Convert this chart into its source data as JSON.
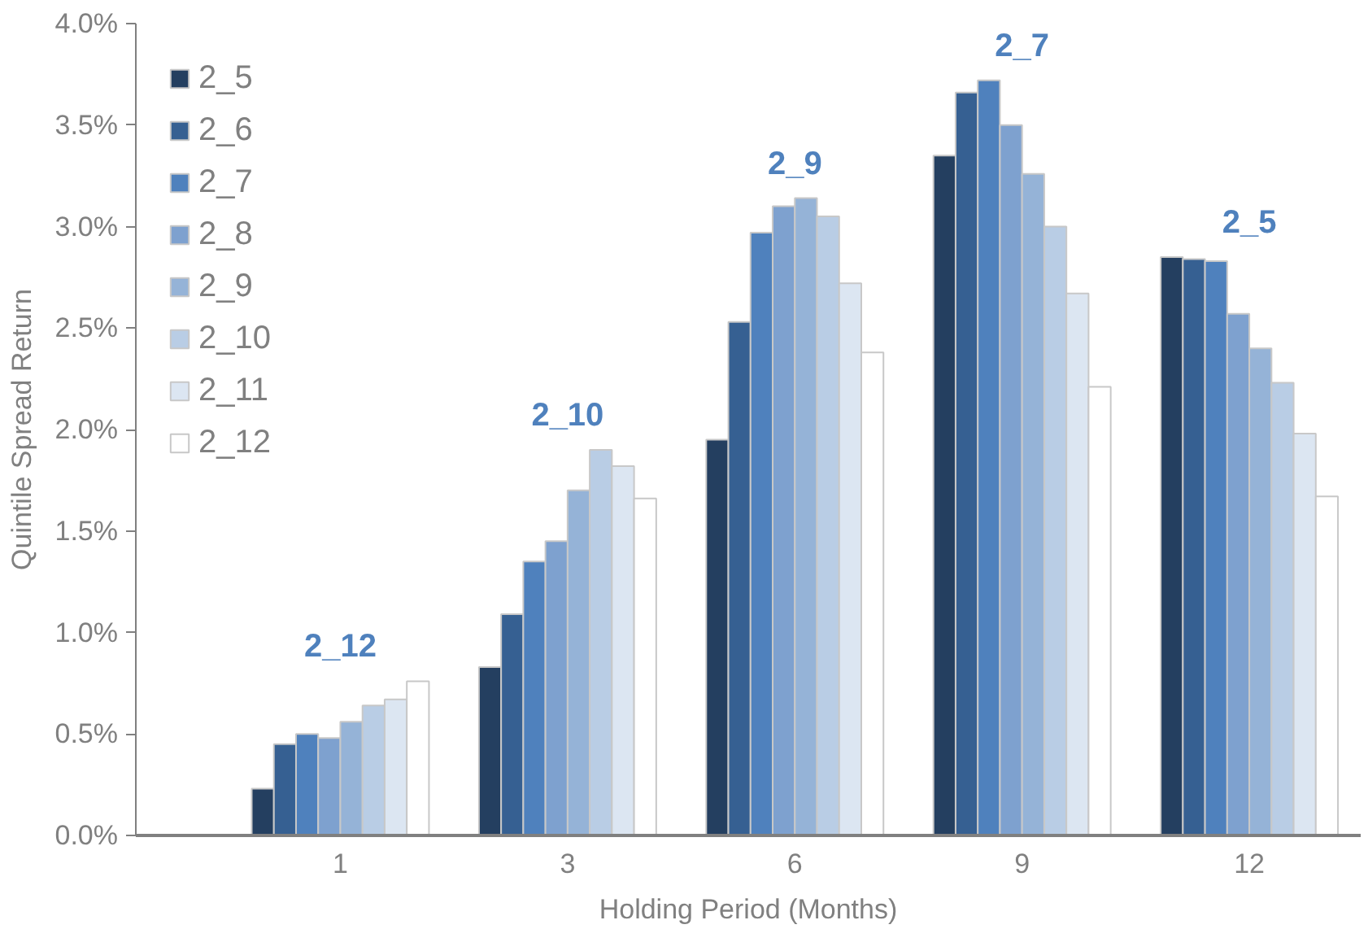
{
  "chart_data": {
    "type": "bar",
    "xlabel": "Holding Period (Months)",
    "ylabel": "Quintile Spread Return",
    "categories": [
      "1",
      "3",
      "6",
      "9",
      "12"
    ],
    "series": [
      {
        "name": "2_5",
        "color": "#243f60",
        "values": [
          0.23,
          0.83,
          1.95,
          3.35,
          2.85
        ]
      },
      {
        "name": "2_6",
        "color": "#366092",
        "values": [
          0.45,
          1.09,
          2.53,
          3.66,
          2.84
        ]
      },
      {
        "name": "2_7",
        "color": "#4f81bd",
        "values": [
          0.5,
          1.35,
          2.97,
          3.72,
          2.83
        ]
      },
      {
        "name": "2_8",
        "color": "#7ea1cf",
        "values": [
          0.48,
          1.45,
          3.1,
          3.5,
          2.57
        ]
      },
      {
        "name": "2_9",
        "color": "#95b3d7",
        "values": [
          0.56,
          1.7,
          3.14,
          3.26,
          2.4
        ]
      },
      {
        "name": "2_10",
        "color": "#b9cde5",
        "values": [
          0.64,
          1.9,
          3.05,
          3.0,
          2.23
        ]
      },
      {
        "name": "2_11",
        "color": "#dce6f2",
        "values": [
          0.67,
          1.82,
          2.72,
          2.67,
          1.98
        ]
      },
      {
        "name": "2_12",
        "color": "#ffffff",
        "values": [
          0.76,
          1.66,
          2.38,
          2.21,
          1.67
        ]
      }
    ],
    "ylim": [
      0,
      4.0
    ],
    "yticks": [
      {
        "value": 0,
        "label": "0.0%"
      },
      {
        "value": 0.5,
        "label": "0.5%"
      },
      {
        "value": 1.0,
        "label": "1.0%"
      },
      {
        "value": 1.5,
        "label": "1.5%"
      },
      {
        "value": 2.0,
        "label": "2.0%"
      },
      {
        "value": 2.5,
        "label": "2.5%"
      },
      {
        "value": 3.0,
        "label": "3.0%"
      },
      {
        "value": 3.5,
        "label": "3.5%"
      },
      {
        "value": 4.0,
        "label": "4.0%"
      }
    ],
    "annotations": [
      "2_12",
      "2_10",
      "2_9",
      "2_7",
      "2_5"
    ],
    "grid": false,
    "legend": "top left"
  }
}
